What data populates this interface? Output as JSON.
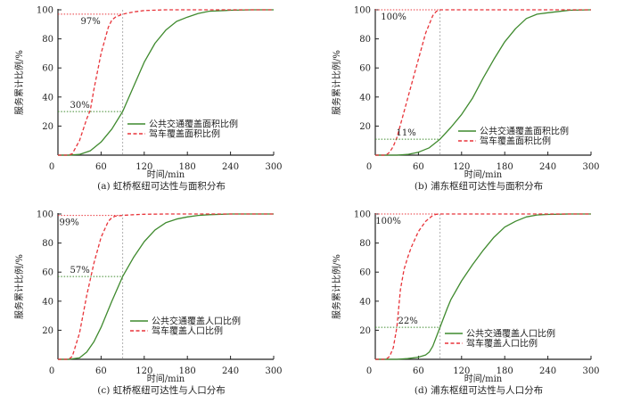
{
  "colors": {
    "transit": "#3f8a2e",
    "driving": "#e8343a",
    "ref_vertical": "#b0b0b0",
    "axis": "#222222"
  },
  "chart_data": [
    {
      "id": "a",
      "type": "line",
      "caption": "(a)  虹桥枢纽可达性与面积分布",
      "xlabel": "时间/min",
      "ylabel": "服务累计比例/%",
      "xlim": [
        0,
        300
      ],
      "ylim": [
        0,
        100
      ],
      "xticks": [
        0,
        60,
        120,
        180,
        240,
        300
      ],
      "yticks": [
        20,
        40,
        60,
        80,
        100
      ],
      "grid": false,
      "legend": "center-right",
      "reference_x": 90,
      "annotations": [
        {
          "text": "97%",
          "series": "driving",
          "y": 97
        },
        {
          "text": "30%",
          "series": "transit",
          "y": 30
        }
      ],
      "series": [
        {
          "name": "公共交通覆盖面积比例",
          "style": "solid",
          "color_key": "transit",
          "x": [
            0,
            15,
            30,
            45,
            60,
            75,
            90,
            105,
            120,
            135,
            150,
            165,
            180,
            195,
            210,
            240,
            270,
            300
          ],
          "y": [
            0,
            0,
            0.5,
            3,
            9,
            18,
            30,
            47,
            64,
            77,
            86,
            92,
            95,
            97.5,
            99,
            99.7,
            100,
            100
          ]
        },
        {
          "name": "驾车覆盖面积比例",
          "style": "dashed",
          "color_key": "driving",
          "x": [
            0,
            10,
            15,
            20,
            30,
            40,
            45,
            50,
            60,
            70,
            75,
            80,
            90,
            105,
            120,
            150,
            180,
            240,
            300
          ],
          "y": [
            0,
            0,
            0,
            1,
            10,
            25,
            31,
            45,
            70,
            88,
            93,
            95,
            97,
            98.5,
            99.5,
            100,
            100,
            100,
            100
          ]
        }
      ]
    },
    {
      "id": "b",
      "type": "line",
      "caption": "(b)  浦东枢纽可达性与面积分布",
      "xlabel": "时间/min",
      "ylabel": "服务累计比例/%",
      "xlim": [
        0,
        300
      ],
      "ylim": [
        0,
        100
      ],
      "xticks": [
        0,
        60,
        120,
        180,
        240,
        300
      ],
      "yticks": [
        20,
        40,
        60,
        80,
        100
      ],
      "grid": false,
      "legend": "lower-right",
      "reference_x": 90,
      "annotations": [
        {
          "text": "100%",
          "series": "driving",
          "y": 100
        },
        {
          "text": "11%",
          "series": "transit",
          "y": 11
        }
      ],
      "series": [
        {
          "name": "公共交通覆盖面积比例",
          "style": "solid",
          "color_key": "transit",
          "x": [
            0,
            30,
            45,
            60,
            75,
            90,
            105,
            120,
            135,
            150,
            165,
            180,
            195,
            210,
            225,
            240,
            270,
            300
          ],
          "y": [
            0,
            0,
            0.5,
            2,
            5,
            11,
            19,
            28,
            39,
            53,
            66,
            78,
            87,
            94,
            97,
            98,
            99.7,
            100
          ]
        },
        {
          "name": "驾车覆盖面积比例",
          "style": "dashed",
          "color_key": "driving",
          "x": [
            0,
            10,
            15,
            20,
            25,
            30,
            40,
            50,
            60,
            70,
            80,
            85,
            90,
            120,
            180,
            240,
            300
          ],
          "y": [
            0,
            0,
            0,
            2,
            6,
            12,
            30,
            48,
            66,
            84,
            96,
            99,
            100,
            100,
            100,
            100,
            100
          ]
        }
      ]
    },
    {
      "id": "c",
      "type": "line",
      "caption": "(c)  虹桥枢纽可达性与人口分布",
      "xlabel": "时间/min",
      "ylabel": "服务累计比例/%",
      "xlim": [
        0,
        300
      ],
      "ylim": [
        0,
        100
      ],
      "xticks": [
        0,
        60,
        120,
        180,
        240,
        300
      ],
      "yticks": [
        20,
        40,
        60,
        80,
        100
      ],
      "grid": false,
      "legend": "center-right",
      "reference_x": 90,
      "annotations": [
        {
          "text": "99%",
          "series": "driving",
          "y": 99
        },
        {
          "text": "57%",
          "series": "transit",
          "y": 57
        }
      ],
      "series": [
        {
          "name": "公共交通覆盖人口比例",
          "style": "solid",
          "color_key": "transit",
          "x": [
            0,
            15,
            30,
            40,
            50,
            60,
            75,
            90,
            105,
            120,
            135,
            150,
            165,
            180,
            195,
            210,
            240,
            270,
            300
          ],
          "y": [
            0,
            0,
            1,
            5,
            12,
            22,
            40,
            57,
            70,
            81,
            89,
            94,
            96.5,
            98,
            99,
            99.5,
            100,
            100,
            100
          ]
        },
        {
          "name": "驾车覆盖人口比例",
          "style": "dashed",
          "color_key": "driving",
          "x": [
            0,
            10,
            15,
            20,
            30,
            40,
            45,
            50,
            60,
            70,
            75,
            80,
            90,
            105,
            120,
            150,
            180,
            240,
            300
          ],
          "y": [
            0,
            0,
            0,
            2,
            18,
            44,
            55,
            66,
            84,
            95,
            97.5,
            98.5,
            99,
            99.5,
            99.8,
            100,
            100,
            100,
            100
          ]
        }
      ]
    },
    {
      "id": "d",
      "type": "line",
      "caption": "(d)  浦东枢纽可达性与人口分布",
      "xlabel": "时间/min",
      "ylabel": "服务累计比例/%",
      "xlim": [
        0,
        300
      ],
      "ylim": [
        0,
        100
      ],
      "xticks": [
        0,
        60,
        120,
        180,
        240,
        300
      ],
      "yticks": [
        20,
        40,
        60,
        80,
        100
      ],
      "grid": false,
      "legend": "lower-right",
      "reference_x": 90,
      "annotations": [
        {
          "text": "100%",
          "series": "driving",
          "y": 100
        },
        {
          "text": "22%",
          "series": "transit",
          "y": 22
        }
      ],
      "series": [
        {
          "name": "公共交通覆盖人口比例",
          "style": "solid",
          "color_key": "transit",
          "x": [
            0,
            30,
            45,
            60,
            70,
            75,
            80,
            90,
            100,
            105,
            120,
            135,
            150,
            165,
            180,
            195,
            210,
            225,
            240,
            270,
            300
          ],
          "y": [
            0,
            0,
            0.5,
            1.5,
            3,
            5,
            9,
            22,
            35,
            41,
            54,
            65,
            75,
            84,
            91,
            95,
            98,
            99.3,
            99.7,
            100,
            100
          ]
        },
        {
          "name": "驾车覆盖人口比例",
          "style": "dashed",
          "color_key": "driving",
          "x": [
            0,
            10,
            15,
            20,
            25,
            30,
            35,
            40,
            45,
            50,
            60,
            70,
            80,
            85,
            90,
            120,
            180,
            240,
            300
          ],
          "y": [
            0,
            0,
            0,
            2,
            8,
            22,
            48,
            62,
            70,
            77,
            88,
            95,
            99,
            99.8,
            100,
            100,
            100,
            100,
            100
          ]
        }
      ]
    }
  ]
}
